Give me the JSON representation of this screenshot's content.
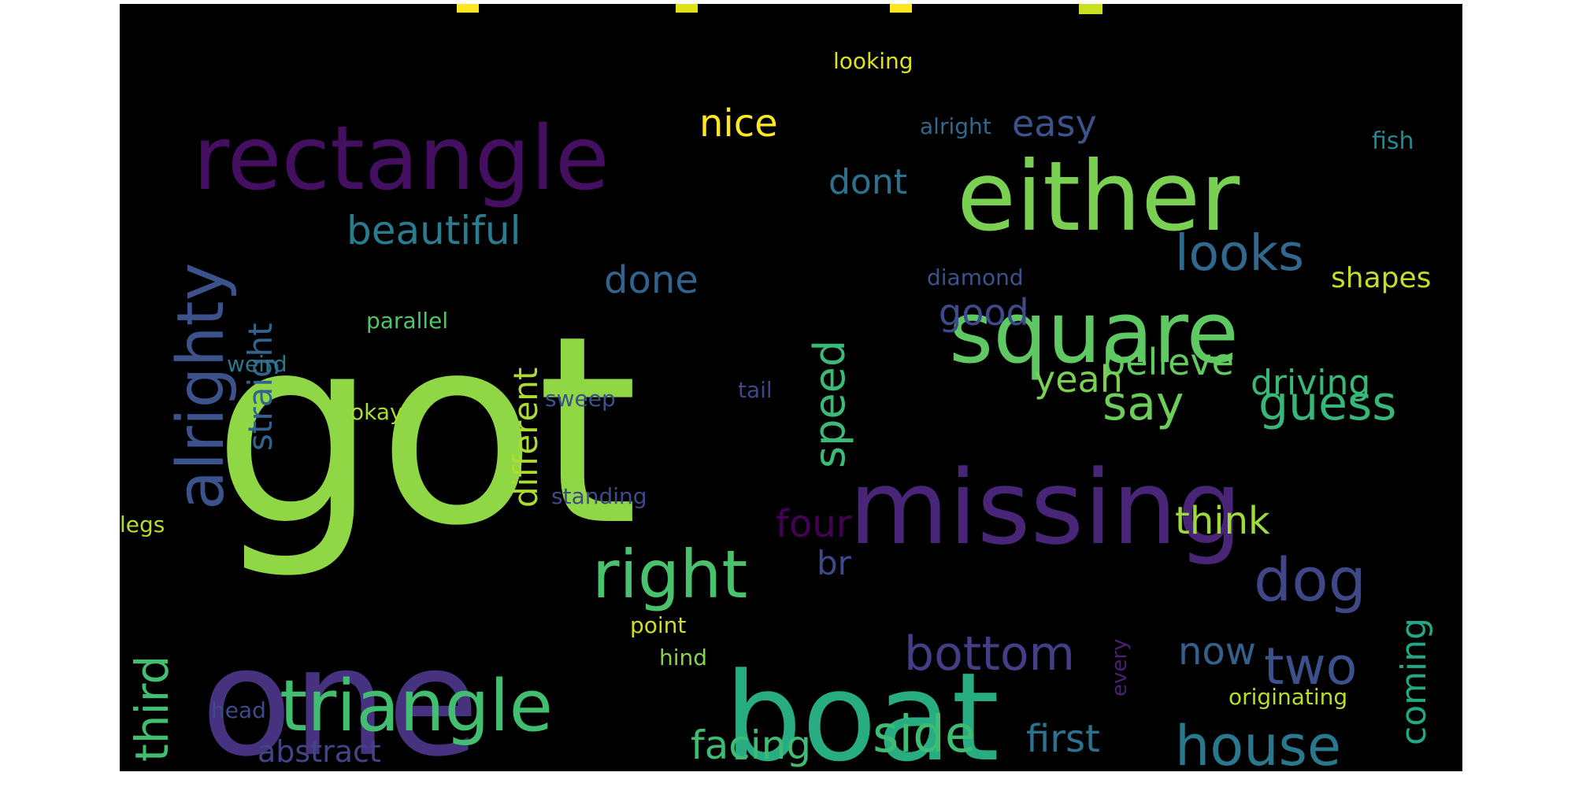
{
  "background": "#000000",
  "words": [
    {
      "text": "got",
      "color": "#8fd744"
    },
    {
      "text": "one",
      "color": "#46327e"
    },
    {
      "text": "boat",
      "color": "#27ad81"
    },
    {
      "text": "missing",
      "color": "#482576"
    },
    {
      "text": "either",
      "color": "#7ad151"
    },
    {
      "text": "rectangle",
      "color": "#440f61"
    },
    {
      "text": "square",
      "color": "#5ec962"
    },
    {
      "text": "triangle",
      "color": "#42be71"
    },
    {
      "text": "alrighty",
      "color": "#3b528b"
    },
    {
      "text": "right",
      "color": "#4ac16d"
    },
    {
      "text": "dog",
      "color": "#3f4788"
    },
    {
      "text": "house",
      "color": "#2a788e"
    },
    {
      "text": "bottom",
      "color": "#433e85"
    },
    {
      "text": "two",
      "color": "#3b518b"
    },
    {
      "text": "side",
      "color": "#3dbc74"
    },
    {
      "text": "looks",
      "color": "#31688e"
    },
    {
      "text": "say",
      "color": "#6ccd5a"
    },
    {
      "text": "guess",
      "color": "#35b779"
    },
    {
      "text": "speed",
      "color": "#3aba76"
    },
    {
      "text": "third",
      "color": "#42be71"
    },
    {
      "text": "straight",
      "color": "#33638d"
    },
    {
      "text": "beautiful",
      "color": "#287c8e"
    },
    {
      "text": "facing",
      "color": "#3fbc73"
    },
    {
      "text": "first",
      "color": "#2c728e"
    },
    {
      "text": "different",
      "color": "#addc30"
    },
    {
      "text": "done",
      "color": "#33638d"
    },
    {
      "text": "believe",
      "color": "#62cb5f"
    },
    {
      "text": "good",
      "color": "#3e4a89"
    },
    {
      "text": "yeah",
      "color": "#7ad151"
    },
    {
      "text": "driving",
      "color": "#38b977"
    },
    {
      "text": "coming",
      "color": "#22a884"
    },
    {
      "text": "think",
      "color": "#a0da39"
    },
    {
      "text": "now",
      "color": "#355f8d"
    },
    {
      "text": "dont",
      "color": "#2c728e"
    },
    {
      "text": "nice",
      "color": "#fde725"
    },
    {
      "text": "easy",
      "color": "#3b528b"
    },
    {
      "text": "four",
      "color": "#440154"
    },
    {
      "text": "abstract",
      "color": "#414487"
    },
    {
      "text": "br",
      "color": "#3e4989"
    },
    {
      "text": "shapes",
      "color": "#c0df25"
    },
    {
      "text": "looking",
      "color": "#dde318"
    },
    {
      "text": "alright",
      "color": "#31688e"
    },
    {
      "text": "fish",
      "color": "#23898e"
    },
    {
      "text": "diamond",
      "color": "#3b528b"
    },
    {
      "text": "parallel",
      "color": "#52c569"
    },
    {
      "text": "weird",
      "color": "#2a788e"
    },
    {
      "text": "okay",
      "color": "#a8db34"
    },
    {
      "text": "tail",
      "color": "#3f4788"
    },
    {
      "text": "sweep",
      "color": "#3b528b"
    },
    {
      "text": "standing",
      "color": "#3e4989"
    },
    {
      "text": "legs",
      "color": "#b5de2b"
    },
    {
      "text": "point",
      "color": "#d0e11c"
    },
    {
      "text": "hind",
      "color": "#84d44b"
    },
    {
      "text": "head",
      "color": "#3e4a89"
    },
    {
      "text": "every",
      "color": "#482173"
    },
    {
      "text": "originating",
      "color": "#b8de29"
    }
  ]
}
